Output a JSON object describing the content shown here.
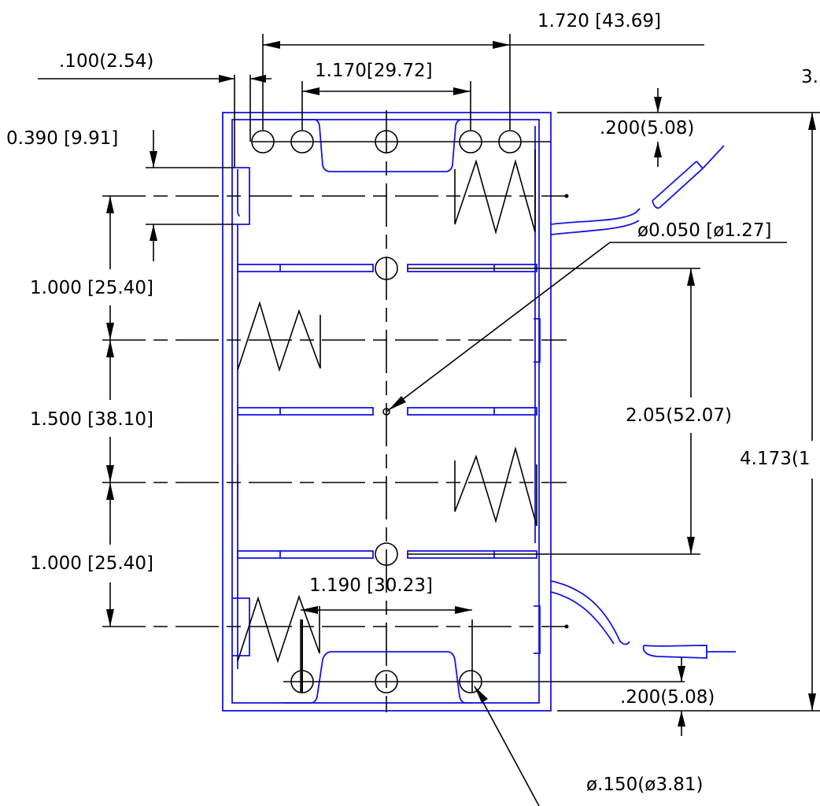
{
  "dimensions": {
    "overall_width": "1.720  [43.69]",
    "hole_spacing_top": "1.170[29.72]",
    "edge_offset": ".100(2.54)",
    "tab_height": "0.390  [9.91]",
    "pitch_upper": "1.000  [25.40]",
    "pitch_middle": "1.500  [38.10]",
    "pitch_lower": "1.000  [25.40]",
    "top_margin": ".200(5.08)",
    "pin_diameter": "ø0.050  [ø1.27]",
    "center_span": "2.05(52.07)",
    "overall_height": "4.173(1",
    "right_partial": "3.",
    "bottom_margin": ".200(5.08)",
    "hole_spacing_bottom": "1.190  [30.23]",
    "mount_hole_diameter": "ø.150(ø3.81)"
  },
  "colors": {
    "outline": "#1414e6",
    "dimension": "#000000"
  }
}
